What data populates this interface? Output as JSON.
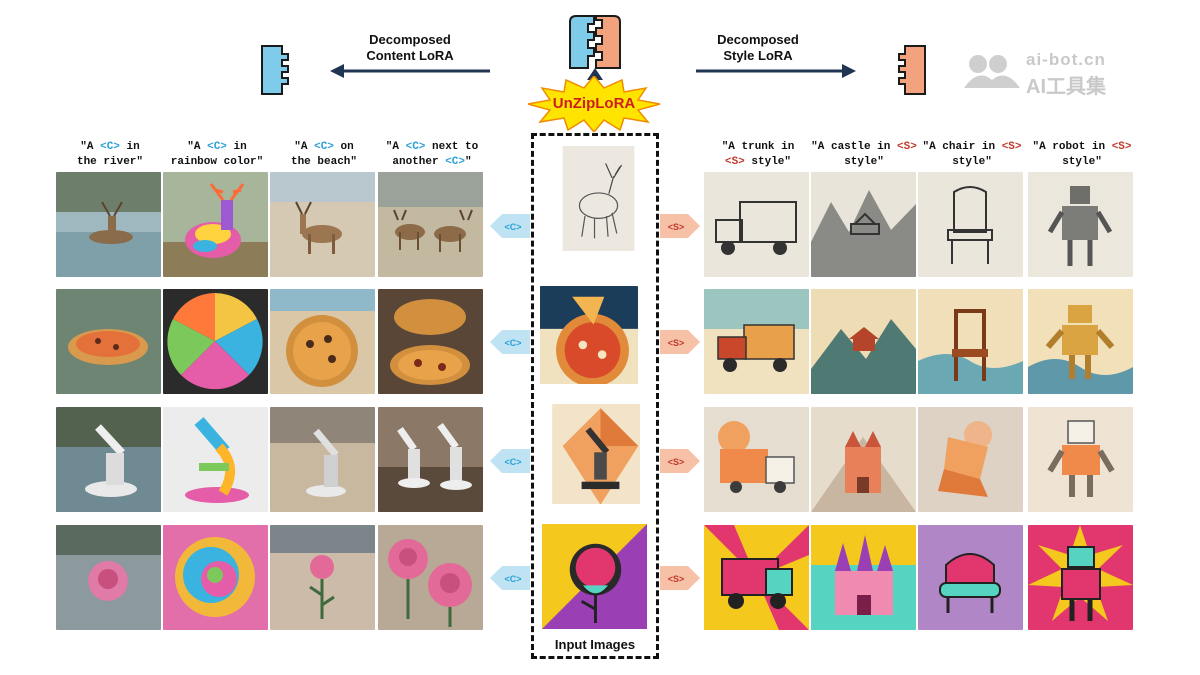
{
  "header": {
    "content_label_line1": "Decomposed",
    "content_label_line2": "Content LoRA",
    "style_label_line1": "Decomposed",
    "style_label_line2": "Style LoRA",
    "method_name": "UnZipLoRA",
    "input_caption": "Input Images"
  },
  "watermark": {
    "line1": "ai-bot.cn",
    "line2": "AI工具集"
  },
  "content_prompts": [
    {
      "pre": "\"A ",
      "token": "<C>",
      "post": " in",
      "line2": "the river\""
    },
    {
      "pre": "\"A ",
      "token": "<C>",
      "post": " in",
      "line2": "rainbow color\""
    },
    {
      "pre": "\"A ",
      "token": "<C>",
      "post": " on",
      "line2": "the beach\""
    },
    {
      "pre": "\"A ",
      "token": "<C>",
      "post": " next to",
      "line2": "another ",
      "token2": "<C>",
      "post2": "\""
    }
  ],
  "style_prompts": [
    {
      "line1": "\"A trunk in",
      "token": "<S>",
      "post": " style\""
    },
    {
      "line1": "\"A castle in ",
      "token": "<S>",
      "line2": "style\""
    },
    {
      "line1": "\"A chair in ",
      "token": "<S>",
      "line2": "style\""
    },
    {
      "line1": "\"A robot in ",
      "token": "<S>",
      "line2": "style\""
    }
  ],
  "tokens": {
    "content": "<C>",
    "style": "<S>"
  },
  "rows": [
    {
      "subject": "deer",
      "content_outputs": [
        "deer in river",
        "rainbow deer",
        "deer on beach",
        "two deer"
      ],
      "input": "ink sketch deer",
      "style_outputs": [
        "ink truck",
        "ink castle",
        "ink chair",
        "ink robot"
      ]
    },
    {
      "subject": "pizza",
      "content_outputs": [
        "pizza in river",
        "rainbow pizza",
        "pizza on beach",
        "two pizzas"
      ],
      "input": "ukiyo-e pizza",
      "style_outputs": [
        "ukiyo-e truck",
        "ukiyo-e castle",
        "ukiyo-e chair",
        "ukiyo-e robot"
      ]
    },
    {
      "subject": "microscope",
      "content_outputs": [
        "microscope in river",
        "rainbow microscope",
        "microscope on beach",
        "two microscopes"
      ],
      "input": "flat microscope",
      "style_outputs": [
        "flat truck",
        "flat castle",
        "flat chair",
        "flat robot"
      ]
    },
    {
      "subject": "rose",
      "content_outputs": [
        "rose in water",
        "rainbow rose",
        "rose on beach",
        "two roses"
      ],
      "input": "pop-art rose",
      "style_outputs": [
        "pop-art truck",
        "pop-art castle",
        "pop-art chair",
        "pop-art robot"
      ]
    }
  ],
  "colors": {
    "content_blue": "#7fcbea",
    "style_orange": "#f3a27e",
    "arrow_navy": "#1f3552",
    "token_blue": "#2aa0d6",
    "token_red": "#c0392b",
    "burst_yellow": "#ffe400",
    "burst_text": "#cc1f1f"
  }
}
